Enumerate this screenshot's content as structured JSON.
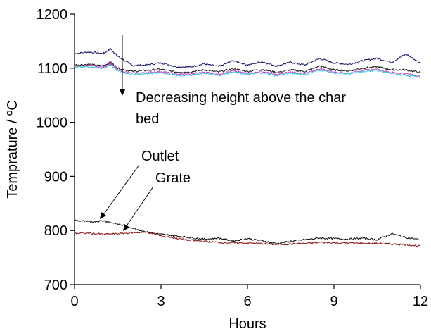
{
  "chart_data": {
    "type": "line",
    "title": "",
    "xlabel": "Hours",
    "ylabel": "Temprature / ºC",
    "xlim": [
      0,
      12
    ],
    "ylim": [
      700,
      1200
    ],
    "xticks": [
      0,
      3,
      6,
      9,
      12
    ],
    "yticks": [
      700,
      800,
      900,
      1000,
      1100,
      1200
    ],
    "grid": false,
    "legend": "none",
    "series": [
      {
        "color": "#1a1a6e",
        "x": [
          0,
          0.5,
          1.0,
          1.25,
          1.5,
          2.0,
          2.5,
          3.0,
          3.5,
          4.0,
          4.5,
          5.0,
          5.5,
          6.0,
          6.5,
          7.0,
          7.5,
          8.0,
          8.5,
          9.0,
          9.5,
          10.0,
          10.5,
          11.0,
          11.5,
          12.0
        ],
        "y": [
          1127,
          1130,
          1127,
          1136,
          1122,
          1105,
          1106,
          1110,
          1103,
          1102,
          1108,
          1103,
          1114,
          1106,
          1112,
          1104,
          1111,
          1106,
          1118,
          1110,
          1107,
          1114,
          1118,
          1111,
          1126,
          1109
        ]
      },
      {
        "color": "#222222",
        "x": [
          0,
          0.5,
          1.0,
          1.25,
          1.5,
          2.0,
          2.5,
          3.0,
          3.5,
          4.0,
          4.5,
          5.0,
          5.5,
          6.0,
          6.5,
          7.0,
          7.5,
          8.0,
          8.5,
          9.0,
          9.5,
          10.0,
          10.5,
          11.0,
          11.5,
          12.0
        ],
        "y": [
          1106,
          1107,
          1104,
          1111,
          1100,
          1094,
          1096,
          1098,
          1093,
          1093,
          1097,
          1093,
          1099,
          1094,
          1098,
          1092,
          1097,
          1094,
          1104,
          1097,
          1095,
          1100,
          1103,
          1097,
          1097,
          1092
        ]
      },
      {
        "color": "#cc44cc",
        "x": [
          0,
          0.5,
          1.0,
          1.25,
          1.5,
          2.0,
          2.5,
          3.0,
          3.5,
          4.0,
          4.5,
          5.0,
          5.5,
          6.0,
          6.5,
          7.0,
          7.5,
          8.0,
          8.5,
          9.0,
          9.5,
          10.0,
          10.5,
          11.0,
          11.5,
          12.0
        ],
        "y": [
          1104,
          1105,
          1102,
          1108,
          1097,
          1090,
          1092,
          1094,
          1089,
          1089,
          1093,
          1089,
          1095,
          1090,
          1094,
          1088,
          1093,
          1090,
          1099,
          1093,
          1091,
          1096,
          1098,
          1092,
          1090,
          1085
        ]
      },
      {
        "color": "#33c4e0",
        "x": [
          0,
          0.5,
          1.0,
          1.25,
          1.5,
          2.0,
          2.5,
          3.0,
          3.5,
          4.0,
          4.5,
          5.0,
          5.5,
          6.0,
          6.5,
          7.0,
          7.5,
          8.0,
          8.5,
          9.0,
          9.5,
          10.0,
          10.5,
          11.0,
          11.5,
          12.0
        ],
        "y": [
          1102,
          1103,
          1100,
          1106,
          1095,
          1088,
          1090,
          1092,
          1087,
          1087,
          1091,
          1087,
          1093,
          1088,
          1092,
          1086,
          1091,
          1088,
          1097,
          1091,
          1089,
          1094,
          1096,
          1090,
          1087,
          1083
        ]
      },
      {
        "color": "#111111",
        "x": [
          0,
          0.5,
          1.0,
          1.5,
          2.0,
          2.5,
          3.0,
          3.5,
          4.0,
          4.5,
          5.0,
          5.5,
          6.0,
          6.5,
          7.0,
          7.5,
          8.0,
          8.5,
          9.0,
          9.5,
          10.0,
          10.5,
          11.0,
          11.5,
          12.0
        ],
        "y": [
          819,
          816,
          818,
          812,
          805,
          797,
          793,
          790,
          787,
          784,
          786,
          781,
          785,
          781,
          776,
          780,
          783,
          786,
          785,
          784,
          786,
          783,
          794,
          787,
          783
        ]
      },
      {
        "color": "#8b1a1a",
        "x": [
          0,
          0.5,
          1.0,
          1.5,
          2.0,
          2.5,
          3.0,
          3.5,
          4.0,
          4.5,
          5.0,
          5.5,
          6.0,
          6.5,
          7.0,
          7.5,
          8.0,
          8.5,
          9.0,
          9.5,
          10.0,
          10.5,
          11.0,
          11.5,
          12.0
        ],
        "y": [
          795,
          795,
          793,
          794,
          796,
          797,
          790,
          786,
          782,
          780,
          778,
          777,
          777,
          776,
          774,
          775,
          776,
          778,
          777,
          777,
          776,
          776,
          775,
          774,
          771
        ]
      }
    ],
    "annotations": [
      {
        "text": "Decreasing height above the char",
        "line2": "bed"
      },
      {
        "text": "Outlet"
      },
      {
        "text": "Grate"
      }
    ]
  }
}
